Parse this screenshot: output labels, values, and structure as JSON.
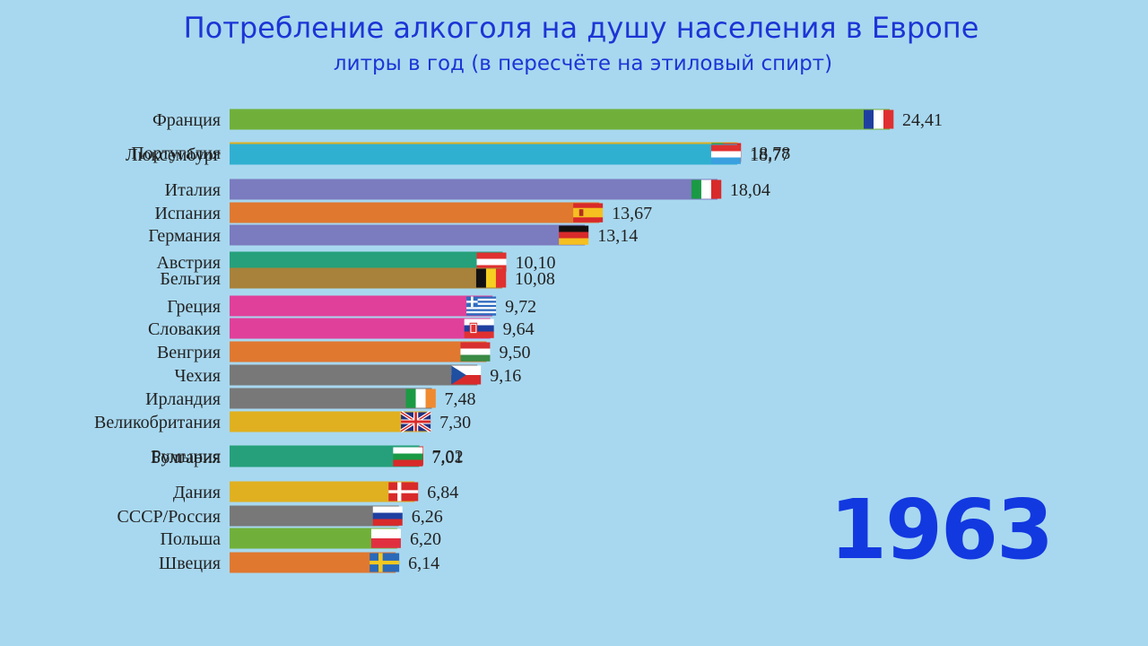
{
  "chart_data": {
    "type": "bar",
    "orientation": "horizontal",
    "title": "Потребление алкоголя на душу населения в Европе",
    "subtitle": "литры в год (в пересчёте на этиловый спирт)",
    "year": "1963",
    "xlim": [
      0,
      24.41
    ],
    "categories": [
      "Франция",
      "Португалия",
      "Люксембург",
      "Италия",
      "Испания",
      "Германия",
      "Австрия",
      "Бельгия",
      "Греция",
      "Словакия",
      "Венгрия",
      "Чехия",
      "Ирландия",
      "Великобритания",
      "Румыния",
      "Болгария",
      "Дания",
      "СССР/Россия",
      "Польша",
      "Швеция"
    ],
    "values": [
      24.41,
      18.78,
      18.77,
      18.04,
      13.67,
      13.14,
      10.1,
      10.08,
      9.72,
      9.64,
      9.5,
      9.16,
      7.48,
      7.3,
      7.02,
      7.01,
      6.84,
      6.26,
      6.2,
      6.14
    ],
    "value_labels": [
      "24,41",
      "18,78",
      "18,77",
      "18,04",
      "13,67",
      "13,14",
      "10,10",
      "10,08",
      "9,72",
      "9,64",
      "9,50",
      "9,16",
      "7,48",
      "7,30",
      "7,02",
      "7,01",
      "6,84",
      "6,26",
      "6,20",
      "6,14"
    ],
    "colors": [
      "#70b03a",
      "#e0b020",
      "#30b0d0",
      "#7b7bbf",
      "#e07830",
      "#7b7bbf",
      "#25a07a",
      "#a8823a",
      "#e0409a",
      "#e0409a",
      "#e07830",
      "#787878",
      "#787878",
      "#e0b020",
      "#25a07a",
      "#25a07a",
      "#e0b020",
      "#787878",
      "#70b03a",
      "#e07830"
    ],
    "flags": [
      "france-flag",
      "portugal-flag",
      "luxembourg-flag",
      "italy-flag",
      "spain-flag",
      "germany-flag",
      "austria-flag",
      "belgium-flag",
      "greece-flag",
      "slovakia-flag",
      "hungary-flag",
      "czechia-flag",
      "ireland-flag",
      "uk-flag",
      "romania-flag",
      "bulgaria-flag",
      "denmark-flag",
      "russia-flag",
      "poland-flag",
      "sweden-flag"
    ]
  }
}
